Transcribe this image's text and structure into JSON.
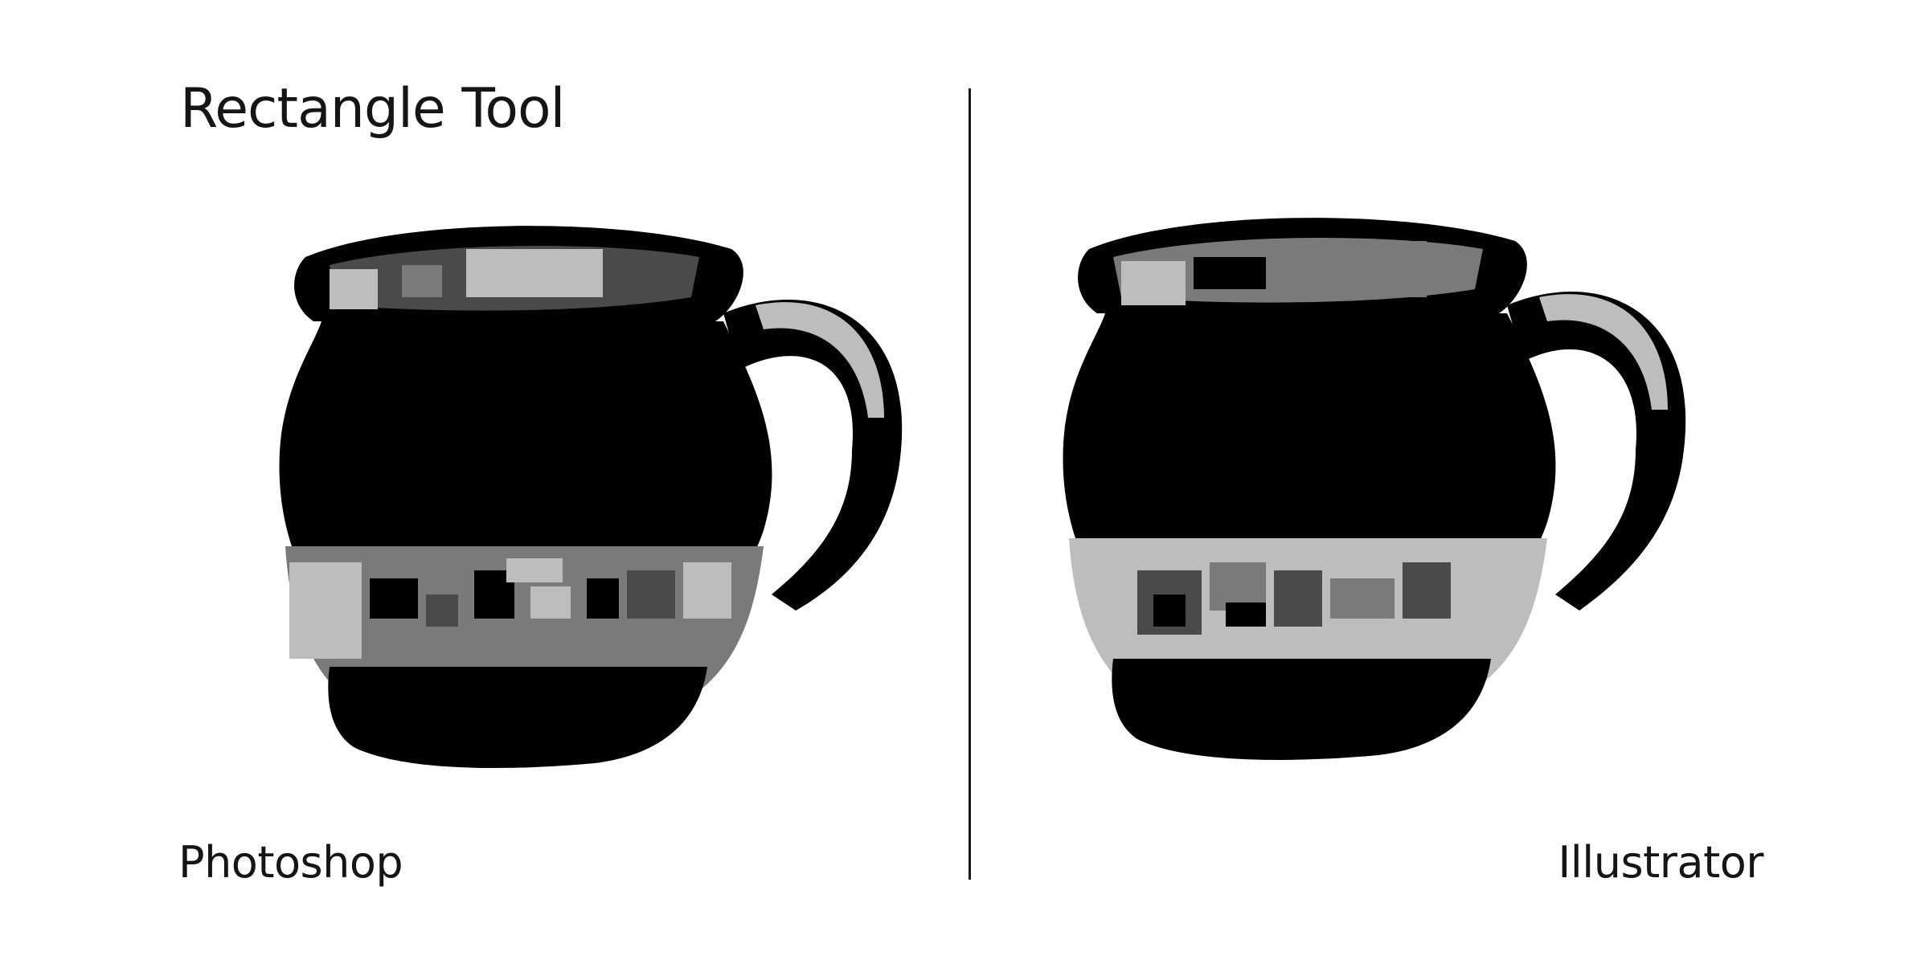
{
  "title": "Rectangle Tool",
  "captions": {
    "left": "Photoshop",
    "right": "Illustrator"
  },
  "colors": {
    "ink": "#000000",
    "dark_gray": "#4a4a4a",
    "mid_gray": "#7a7a7a",
    "light_gray": "#bdbdbd",
    "background": "#ffffff"
  }
}
